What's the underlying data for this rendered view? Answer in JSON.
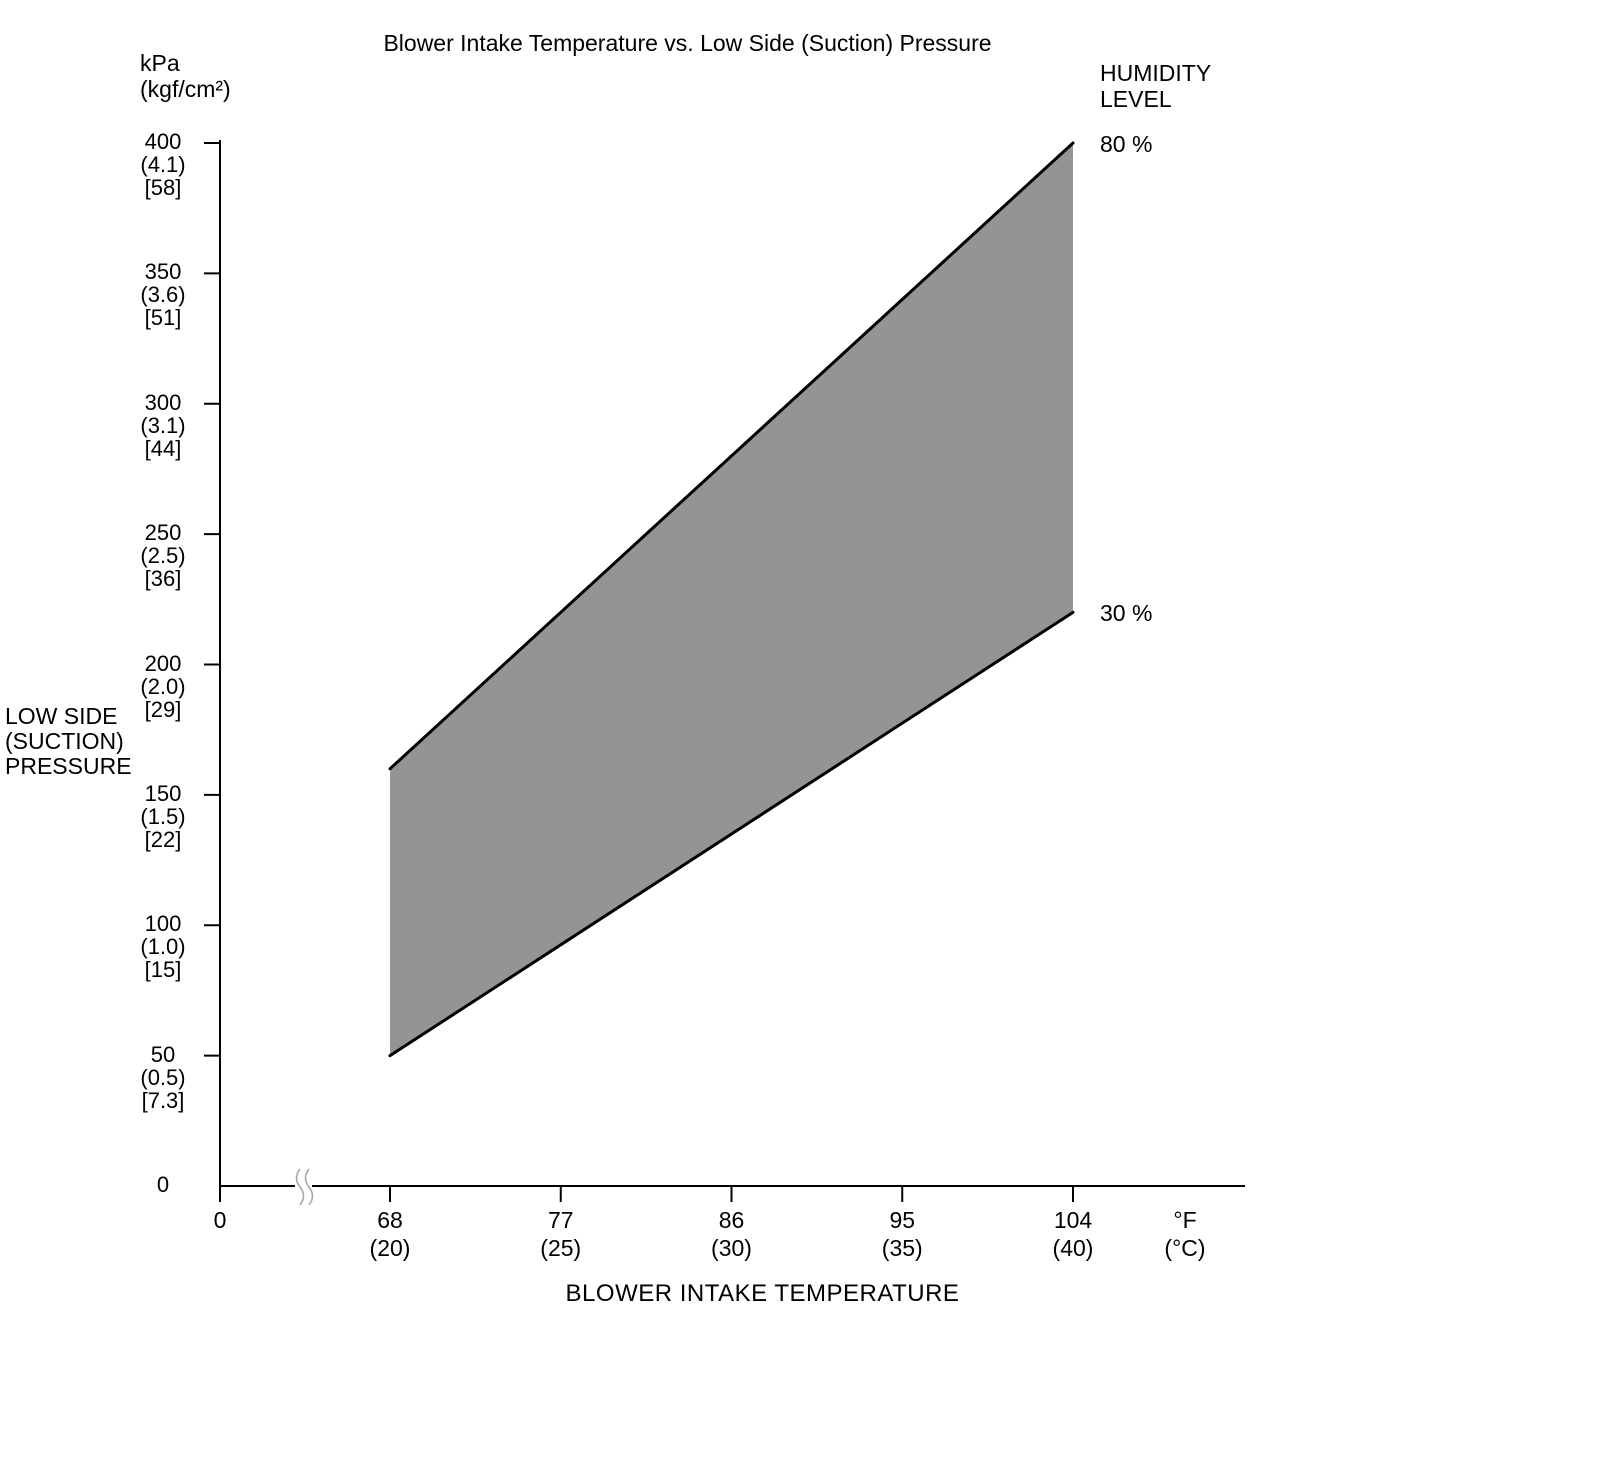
{
  "title": "Blower Intake Temperature vs. Low Side (Suction) Pressure",
  "y_axis": {
    "unit_line1": "kPa",
    "unit_line2": "(kgf/cm²)",
    "label_line1": "LOW SIDE",
    "label_line2": "(SUCTION)",
    "label_line3": "PRESSURE",
    "ticks": [
      {
        "value": 400,
        "kpa": "400",
        "kgf": "(4.1)",
        "psi": "[58]"
      },
      {
        "value": 350,
        "kpa": "350",
        "kgf": "(3.6)",
        "psi": "[51]"
      },
      {
        "value": 300,
        "kpa": "300",
        "kgf": "(3.1)",
        "psi": "[44]"
      },
      {
        "value": 250,
        "kpa": "250",
        "kgf": "(2.5)",
        "psi": "[36]"
      },
      {
        "value": 200,
        "kpa": "200",
        "kgf": "(2.0)",
        "psi": "[29]"
      },
      {
        "value": 150,
        "kpa": "150",
        "kgf": "(1.5)",
        "psi": "[22]"
      },
      {
        "value": 100,
        "kpa": "100",
        "kgf": "(1.0)",
        "psi": "[15]"
      },
      {
        "value": 50,
        "kpa": "50",
        "kgf": "(0.5)",
        "psi": "[7.3]"
      },
      {
        "value": 0,
        "kpa": "0",
        "kgf": "",
        "psi": ""
      }
    ]
  },
  "x_axis": {
    "label": "BLOWER INTAKE TEMPERATURE",
    "origin_label": "0",
    "unit_line1": "°F",
    "unit_line2": "(°C)",
    "ticks": [
      {
        "value": 68,
        "f": "68",
        "c": "(20)"
      },
      {
        "value": 77,
        "f": "77",
        "c": "(25)"
      },
      {
        "value": 86,
        "f": "86",
        "c": "(30)"
      },
      {
        "value": 95,
        "f": "95",
        "c": "(35)"
      },
      {
        "value": 104,
        "f": "104",
        "c": "(40)"
      }
    ]
  },
  "legend": {
    "title_line1": "HUMIDITY",
    "title_line2": "LEVEL",
    "upper_label": "80 %",
    "lower_label": "30 %"
  },
  "chart_data": {
    "type": "area",
    "title": "Blower Intake Temperature vs. Low Side (Suction) Pressure",
    "xlabel": "BLOWER INTAKE TEMPERATURE",
    "ylabel": "LOW SIDE (SUCTION) PRESSURE",
    "x_unit": "°F (°C)",
    "y_unit": "kPa (kgf/cm²) [psi]",
    "x_f": [
      68,
      104
    ],
    "series": [
      {
        "name": "80 %",
        "y_kpa": [
          160,
          400
        ]
      },
      {
        "name": "30 %",
        "y_kpa": [
          50,
          220
        ]
      }
    ],
    "x_ticks_f": [
      68,
      77,
      86,
      95,
      104
    ],
    "x_ticks_c": [
      20,
      25,
      30,
      35,
      40
    ],
    "y_ticks_kpa": [
      400,
      350,
      300,
      250,
      200,
      150,
      100,
      50,
      0
    ],
    "y_ticks_kgfcm2": [
      4.1,
      3.6,
      3.1,
      2.5,
      2.0,
      1.5,
      1.0,
      0.5
    ],
    "y_ticks_psi": [
      58,
      51,
      44,
      36,
      29,
      22,
      15,
      7.3
    ],
    "ylim_kpa": [
      0,
      400
    ],
    "grid": false,
    "axis_break_on_x": true,
    "legend_position": "right",
    "band_fill": "#949494",
    "line_color": "#000000"
  }
}
